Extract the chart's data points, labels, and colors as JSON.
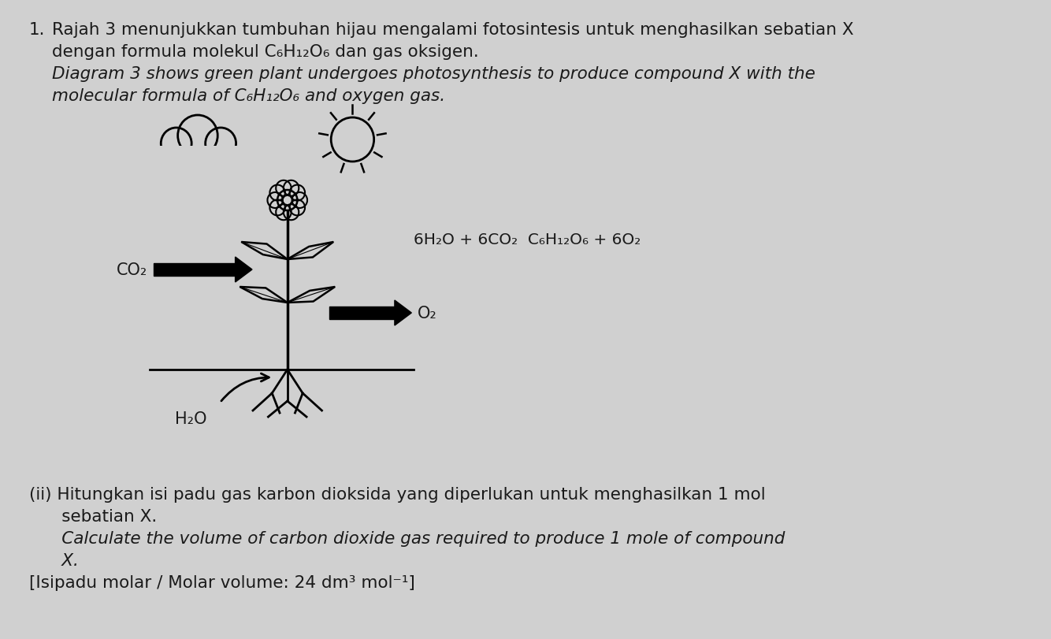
{
  "background_color": "#d0d0d0",
  "title_number": "1.",
  "malay_text_line1": "Rajah 3 menunjukkan tumbuhan hijau mengalami fotosintesis untuk menghasilkan sebatian X",
  "malay_text_line2": "dengan formula molekul C₆H₁₂O₆ dan gas oksigen.",
  "english_text_line1": "Diagram 3 shows green plant undergoes photosynthesis to produce compound X with the",
  "english_text_line2": "molecular formula of C₆H₁₂O₆ and oxygen gas.",
  "equation": "6H₂O + 6CO₂  C₆H₁₂O₆ + 6O₂",
  "co2_label": "CO₂",
  "o2_label": "O₂",
  "h2o_label": "H₂O",
  "part_ii_malay_line1": "(ii) Hitungkan isi padu gas karbon dioksida yang diperlukan untuk menghasilkan 1 mol",
  "part_ii_malay_line2": "      sebatian X.",
  "part_ii_english_line1": "      Calculate the volume of carbon dioxide gas required to produce 1 mole of compound",
  "part_ii_english_line2": "      X.",
  "molar_volume": "[Isipadu molar / Molar volume: 24 dm³ mol⁻¹]",
  "font_size_main": 15.5,
  "font_size_label": 15,
  "font_size_equation": 14.5,
  "text_color": "#1a1a1a"
}
